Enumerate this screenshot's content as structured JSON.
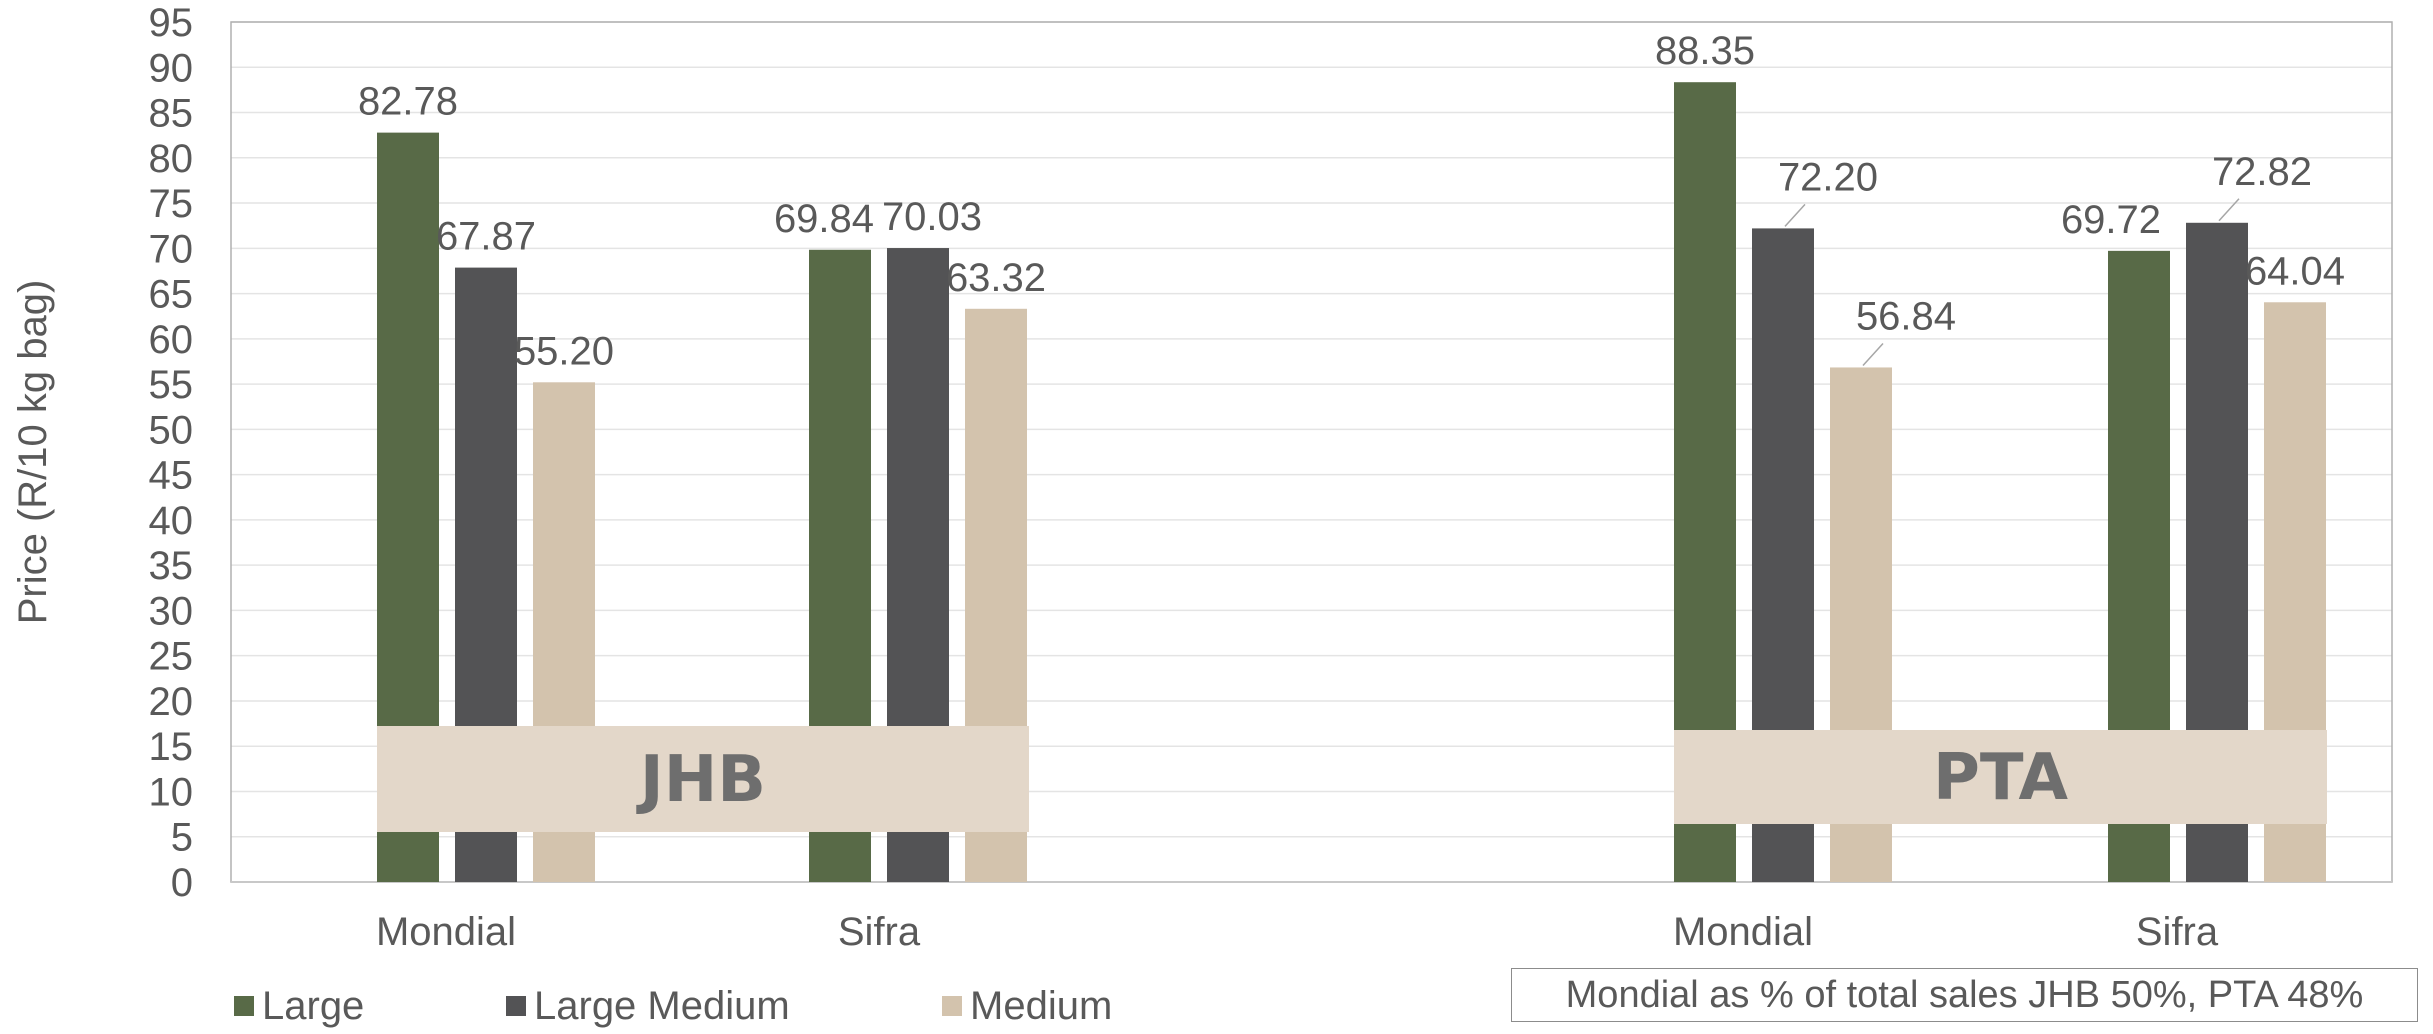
{
  "chart_data": {
    "type": "bar",
    "ylabel": "Price (R/10 kg bag)",
    "xlabel": "",
    "ylim": [
      0,
      95
    ],
    "y_ticks": [
      0,
      5,
      10,
      15,
      20,
      25,
      30,
      35,
      40,
      45,
      50,
      55,
      60,
      65,
      70,
      75,
      80,
      85,
      90,
      95
    ],
    "grid": true,
    "groups": [
      {
        "label": "JHB",
        "categories": [
          "Mondial",
          "Sifra"
        ],
        "series": [
          {
            "name": "Large",
            "values": [
              82.78,
              69.84
            ]
          },
          {
            "name": "Large Medium",
            "values": [
              67.87,
              70.03
            ]
          },
          {
            "name": "Medium",
            "values": [
              55.2,
              63.32
            ]
          }
        ],
        "data_labels": [
          [
            "82.78",
            "67.87",
            "55.20"
          ],
          [
            "69.84",
            "70.03",
            "63.32"
          ]
        ]
      },
      {
        "label": "PTA",
        "categories": [
          "Mondial",
          "Sifra"
        ],
        "series": [
          {
            "name": "Large",
            "values": [
              88.35,
              69.72
            ]
          },
          {
            "name": "Large Medium",
            "values": [
              72.2,
              72.82
            ]
          },
          {
            "name": "Medium",
            "values": [
              56.84,
              64.04
            ]
          }
        ],
        "data_labels": [
          [
            "88.35",
            "72.20",
            "56.84"
          ],
          [
            "69.72",
            "72.82",
            "64.04"
          ]
        ]
      }
    ],
    "legend": {
      "position": "bottom-left",
      "entries": [
        {
          "name": "Large",
          "color": "#586a47"
        },
        {
          "name": "Large Medium",
          "color": "#535355"
        },
        {
          "name": "Medium",
          "color": "#d3c3ad"
        }
      ]
    },
    "group_label_color": "#e3d7c9",
    "annotation": "Mondial as % of total sales JHB 50%, PTA 48%"
  }
}
